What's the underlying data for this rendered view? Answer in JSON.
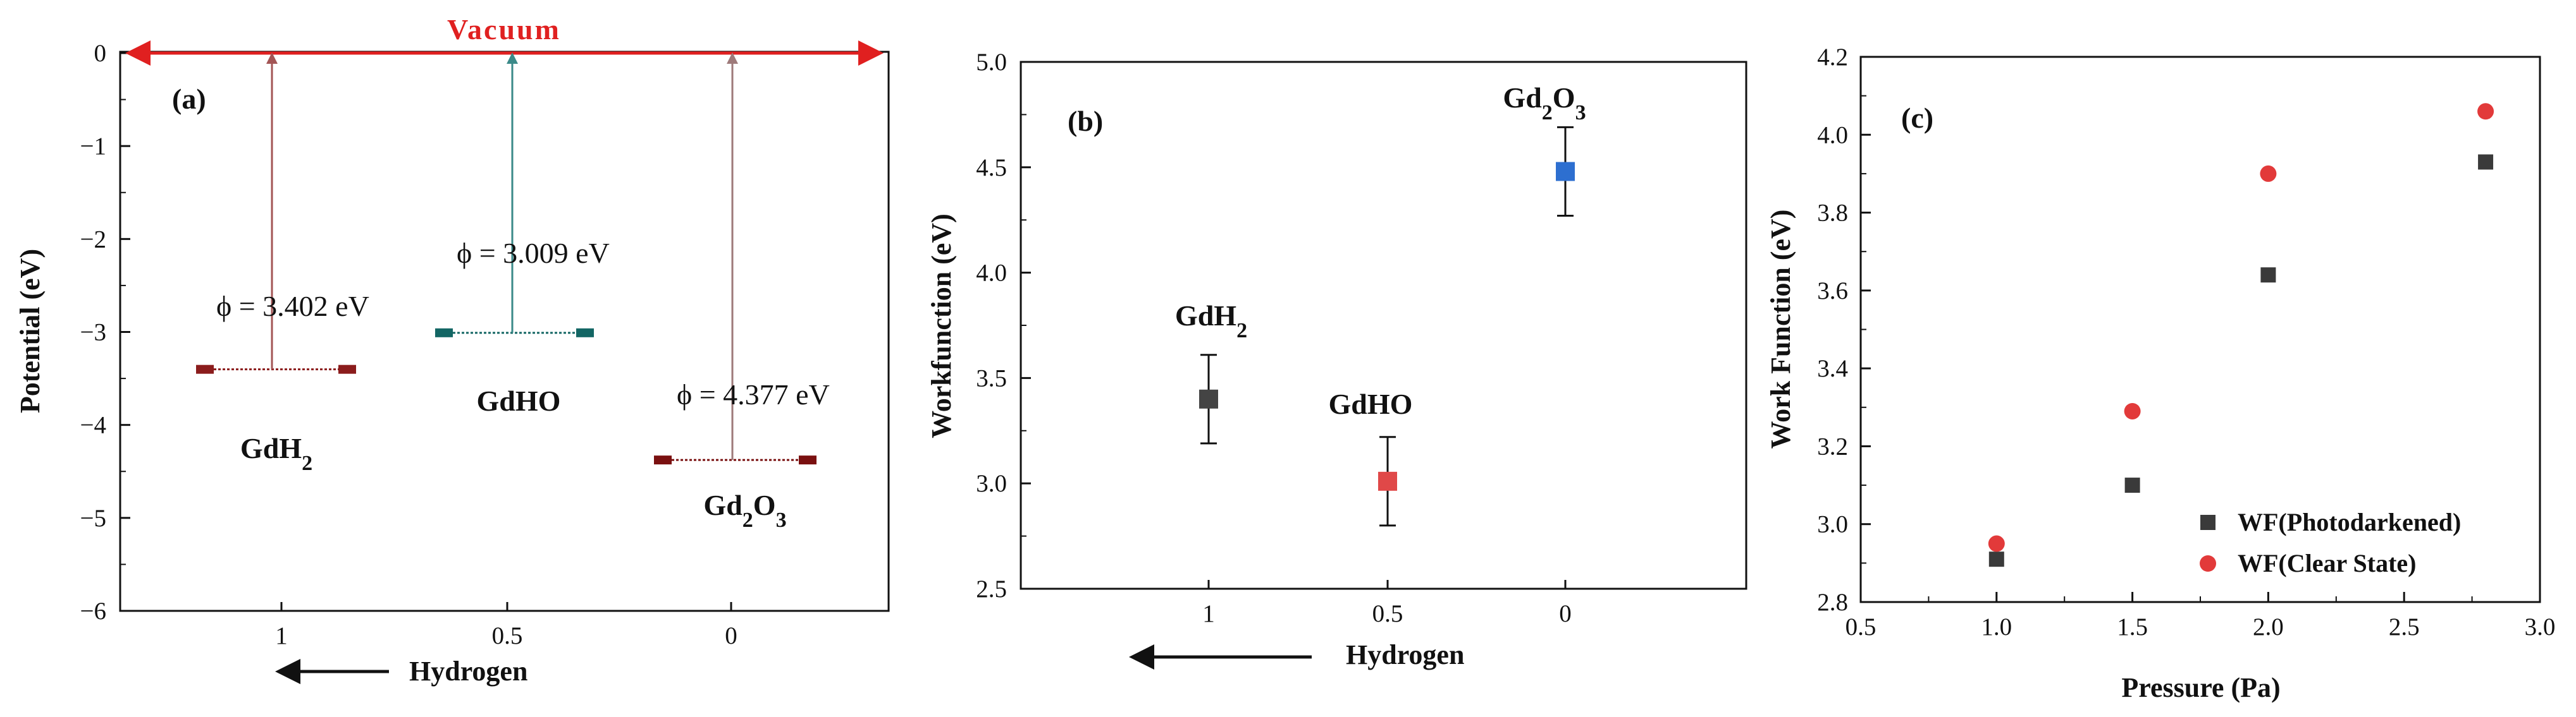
{
  "colors": {
    "axis": "#111111",
    "vacuum": "#e02020",
    "gdh2": "#8b1c1c",
    "gdho": "#136664",
    "gd2o3": "#7a1010",
    "arrow_gdh2": "#a35555",
    "arrow_gdho": "#3b8a89",
    "arrow_gd2o3": "#9e7a7a",
    "b_gdh2": "#444444",
    "b_gdho": "#e04848",
    "b_gd2o3": "#2d6fd0",
    "c_photo": "#3a3a3a",
    "c_clear": "#e23a3a"
  },
  "chart_data": [
    {
      "panel": "a",
      "panel_label": "(a)",
      "type": "diagram",
      "title": "Vacuum",
      "xlabel": "Hydrogen",
      "ylabel": "Potential (eV)",
      "ylim": [
        -6,
        0
      ],
      "yticks": [
        "0",
        "−1",
        "−2",
        "−3",
        "−4",
        "−5",
        "−6"
      ],
      "ytick_values": [
        0,
        -1,
        -2,
        -3,
        -4,
        -5,
        -6
      ],
      "categories": [
        "1",
        "0.5",
        "0"
      ],
      "series": [
        {
          "name": "GdH2",
          "label": "GdH",
          "sub": "2",
          "level": -3.402,
          "phi_text": "ϕ = 3.402 eV"
        },
        {
          "name": "GdHO",
          "label": "GdHO",
          "sub": "",
          "level": -3.009,
          "phi_text": "ϕ = 3.009 eV"
        },
        {
          "name": "Gd2O3",
          "label": "Gd",
          "sub": "2",
          "label2": "O",
          "sub2": "3",
          "level": -4.377,
          "phi_text": "ϕ = 4.377 eV"
        }
      ]
    },
    {
      "panel": "b",
      "panel_label": "(b)",
      "type": "scatter",
      "xlabel": "Hydrogen",
      "ylabel": "Workfunction (eV)",
      "ylim": [
        2.5,
        5.0
      ],
      "yticks": [
        "2.5",
        "3.0",
        "3.5",
        "4.0",
        "4.5",
        "5.0"
      ],
      "ytick_values": [
        2.5,
        3.0,
        3.5,
        4.0,
        4.5,
        5.0
      ],
      "categories": [
        "1",
        "0.5",
        "0"
      ],
      "series": [
        {
          "name": "GdH2",
          "label": "GdH",
          "sub": "2",
          "value": 3.4,
          "error": 0.21
        },
        {
          "name": "GdHO",
          "label": "GdHO",
          "sub": "",
          "value": 3.01,
          "error": 0.21
        },
        {
          "name": "Gd2O3",
          "label": "Gd",
          "sub": "2",
          "label2": "O",
          "sub2": "3",
          "value": 4.48,
          "error": 0.21
        }
      ]
    },
    {
      "panel": "c",
      "panel_label": "(c)",
      "type": "scatter",
      "xlabel": "Pressure (Pa)",
      "ylabel": "Work Function (eV)",
      "xlim": [
        0.5,
        3.0
      ],
      "ylim": [
        2.8,
        4.2
      ],
      "xticks": [
        "0.5",
        "1.0",
        "1.5",
        "2.0",
        "2.5",
        "3.0"
      ],
      "xtick_values": [
        0.5,
        1.0,
        1.5,
        2.0,
        2.5,
        3.0
      ],
      "yticks": [
        "2.8",
        "3.0",
        "3.2",
        "3.4",
        "3.6",
        "3.8",
        "4.0",
        "4.2"
      ],
      "ytick_values": [
        2.8,
        3.0,
        3.2,
        3.4,
        3.6,
        3.8,
        4.0,
        4.2
      ],
      "legend_position": "bottom-right",
      "series": [
        {
          "name": "WF(Photodarkened)",
          "marker": "square",
          "x": [
            1.0,
            1.5,
            2.0,
            2.8
          ],
          "y": [
            2.91,
            3.1,
            3.64,
            3.93
          ]
        },
        {
          "name": "WF(Clear State)",
          "marker": "circle",
          "x": [
            1.0,
            1.5,
            2.0,
            2.8
          ],
          "y": [
            2.95,
            3.29,
            3.9,
            4.06
          ]
        }
      ]
    }
  ]
}
